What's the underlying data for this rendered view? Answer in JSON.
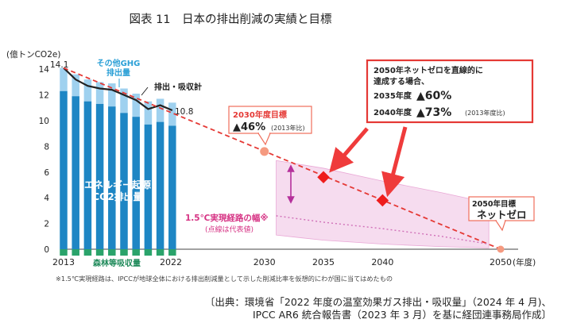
{
  "chart_data": {
    "type": "bar",
    "title": "図表 11　日本の排出削減の実績と目標",
    "ylabel": "(億トンCO2e)",
    "xlabel": "(年度)",
    "ylim": [
      0,
      14
    ],
    "yticks": [
      0,
      2,
      4,
      6,
      8,
      10,
      12,
      14
    ],
    "xticks": [
      "2013",
      "2022",
      "2030",
      "2035",
      "2040",
      "2050"
    ],
    "grid": false,
    "bars": {
      "years": [
        2013,
        2014,
        2015,
        2016,
        2017,
        2018,
        2019,
        2020,
        2021,
        2022
      ],
      "total_ghg": [
        14.1,
        13.6,
        13.2,
        13.0,
        12.9,
        12.5,
        12.1,
        11.5,
        11.7,
        11.4
      ],
      "energy_co2": [
        12.3,
        11.9,
        11.5,
        11.3,
        11.1,
        10.6,
        10.3,
        9.7,
        9.9,
        9.6
      ],
      "sink": [
        -0.5,
        -0.5,
        -0.5,
        -0.5,
        -0.5,
        -0.5,
        -0.5,
        -0.5,
        -0.5,
        -0.5
      ]
    },
    "series": [
      {
        "name": "排出・吸収計",
        "x": [
          2013,
          2014,
          2015,
          2016,
          2017,
          2018,
          2019,
          2020,
          2021,
          2022
        ],
        "y": [
          14.1,
          13.2,
          12.7,
          12.5,
          12.4,
          12.0,
          11.6,
          10.9,
          11.2,
          10.8
        ]
      },
      {
        "x": [
          2013,
          2050
        ],
        "y": [
          14.1,
          0
        ]
      },
      {
        "x": [
          2030,
          2035,
          2040,
          2050
        ],
        "y": [
          7.6,
          5.6,
          3.8,
          0
        ]
      },
      {
        "x": [
          2031,
          2035,
          2040,
          2045,
          2049
        ],
        "y": [
          2.6,
          2.1,
          1.6,
          1.0,
          0.4
        ]
      },
      {
        "x": [
          2031,
          2035,
          2040,
          2045,
          2049,
          2049,
          2045,
          2040,
          2035,
          2031
        ],
        "y": [
          6.9,
          6.3,
          5.3,
          4.4,
          3.6,
          0.1,
          0.2,
          0.4,
          0.7,
          1.1
        ]
      }
    ],
    "labels": {
      "start_value": "14.1",
      "end_value": "10.8",
      "other_ghg": "その他GHG\n排出量",
      "net_line": "排出・吸収計",
      "energy": "エネルギー起源\nCO2排出量",
      "sink": "森林等吸収量",
      "target_2030_title": "2030年度目標",
      "target_2030_value": "▲46%",
      "target_2030_note": "(2013年比)",
      "target_2050_title": "2050年目標",
      "target_2050_value": "ネットゼロ",
      "pathway_title": "1.5℃実現経路の幅※",
      "pathway_note": "(点線は代表値)",
      "box_heading": "2050年ネットゼロを直線的に\n達成する場合、",
      "box_2035_year": "2035年度",
      "box_2035_value": "▲60%",
      "box_2040_year": "2040年度",
      "box_2040_value": "▲73%",
      "box_2040_note": "(2013年度比)"
    },
    "footnote": "※1.5℃実現経路は、IPCCが地球全体における排出削減量として示した削減比率を仮想的にわが国に当てはめたもの",
    "source_line1": "〔出典：環境省「2022 年度の温室効果ガス排出・吸収量」（2024 年 4 月)、",
    "source_line2": "IPCC AR6 統合報告書（2023 年 3 月）を基に経団連事務局作成〕"
  },
  "colors": {
    "ghg": "#9fd1ef",
    "energy": "#1e86c4",
    "sink": "#2aa36b",
    "net": "#222222",
    "linear": "#e53935",
    "marker": "#ee1c1c",
    "band": "#f6dcef",
    "band_edge": "#e9a8d6",
    "dotted": "#d070b8",
    "text_red": "#e53935",
    "box_border": "#e53935"
  }
}
